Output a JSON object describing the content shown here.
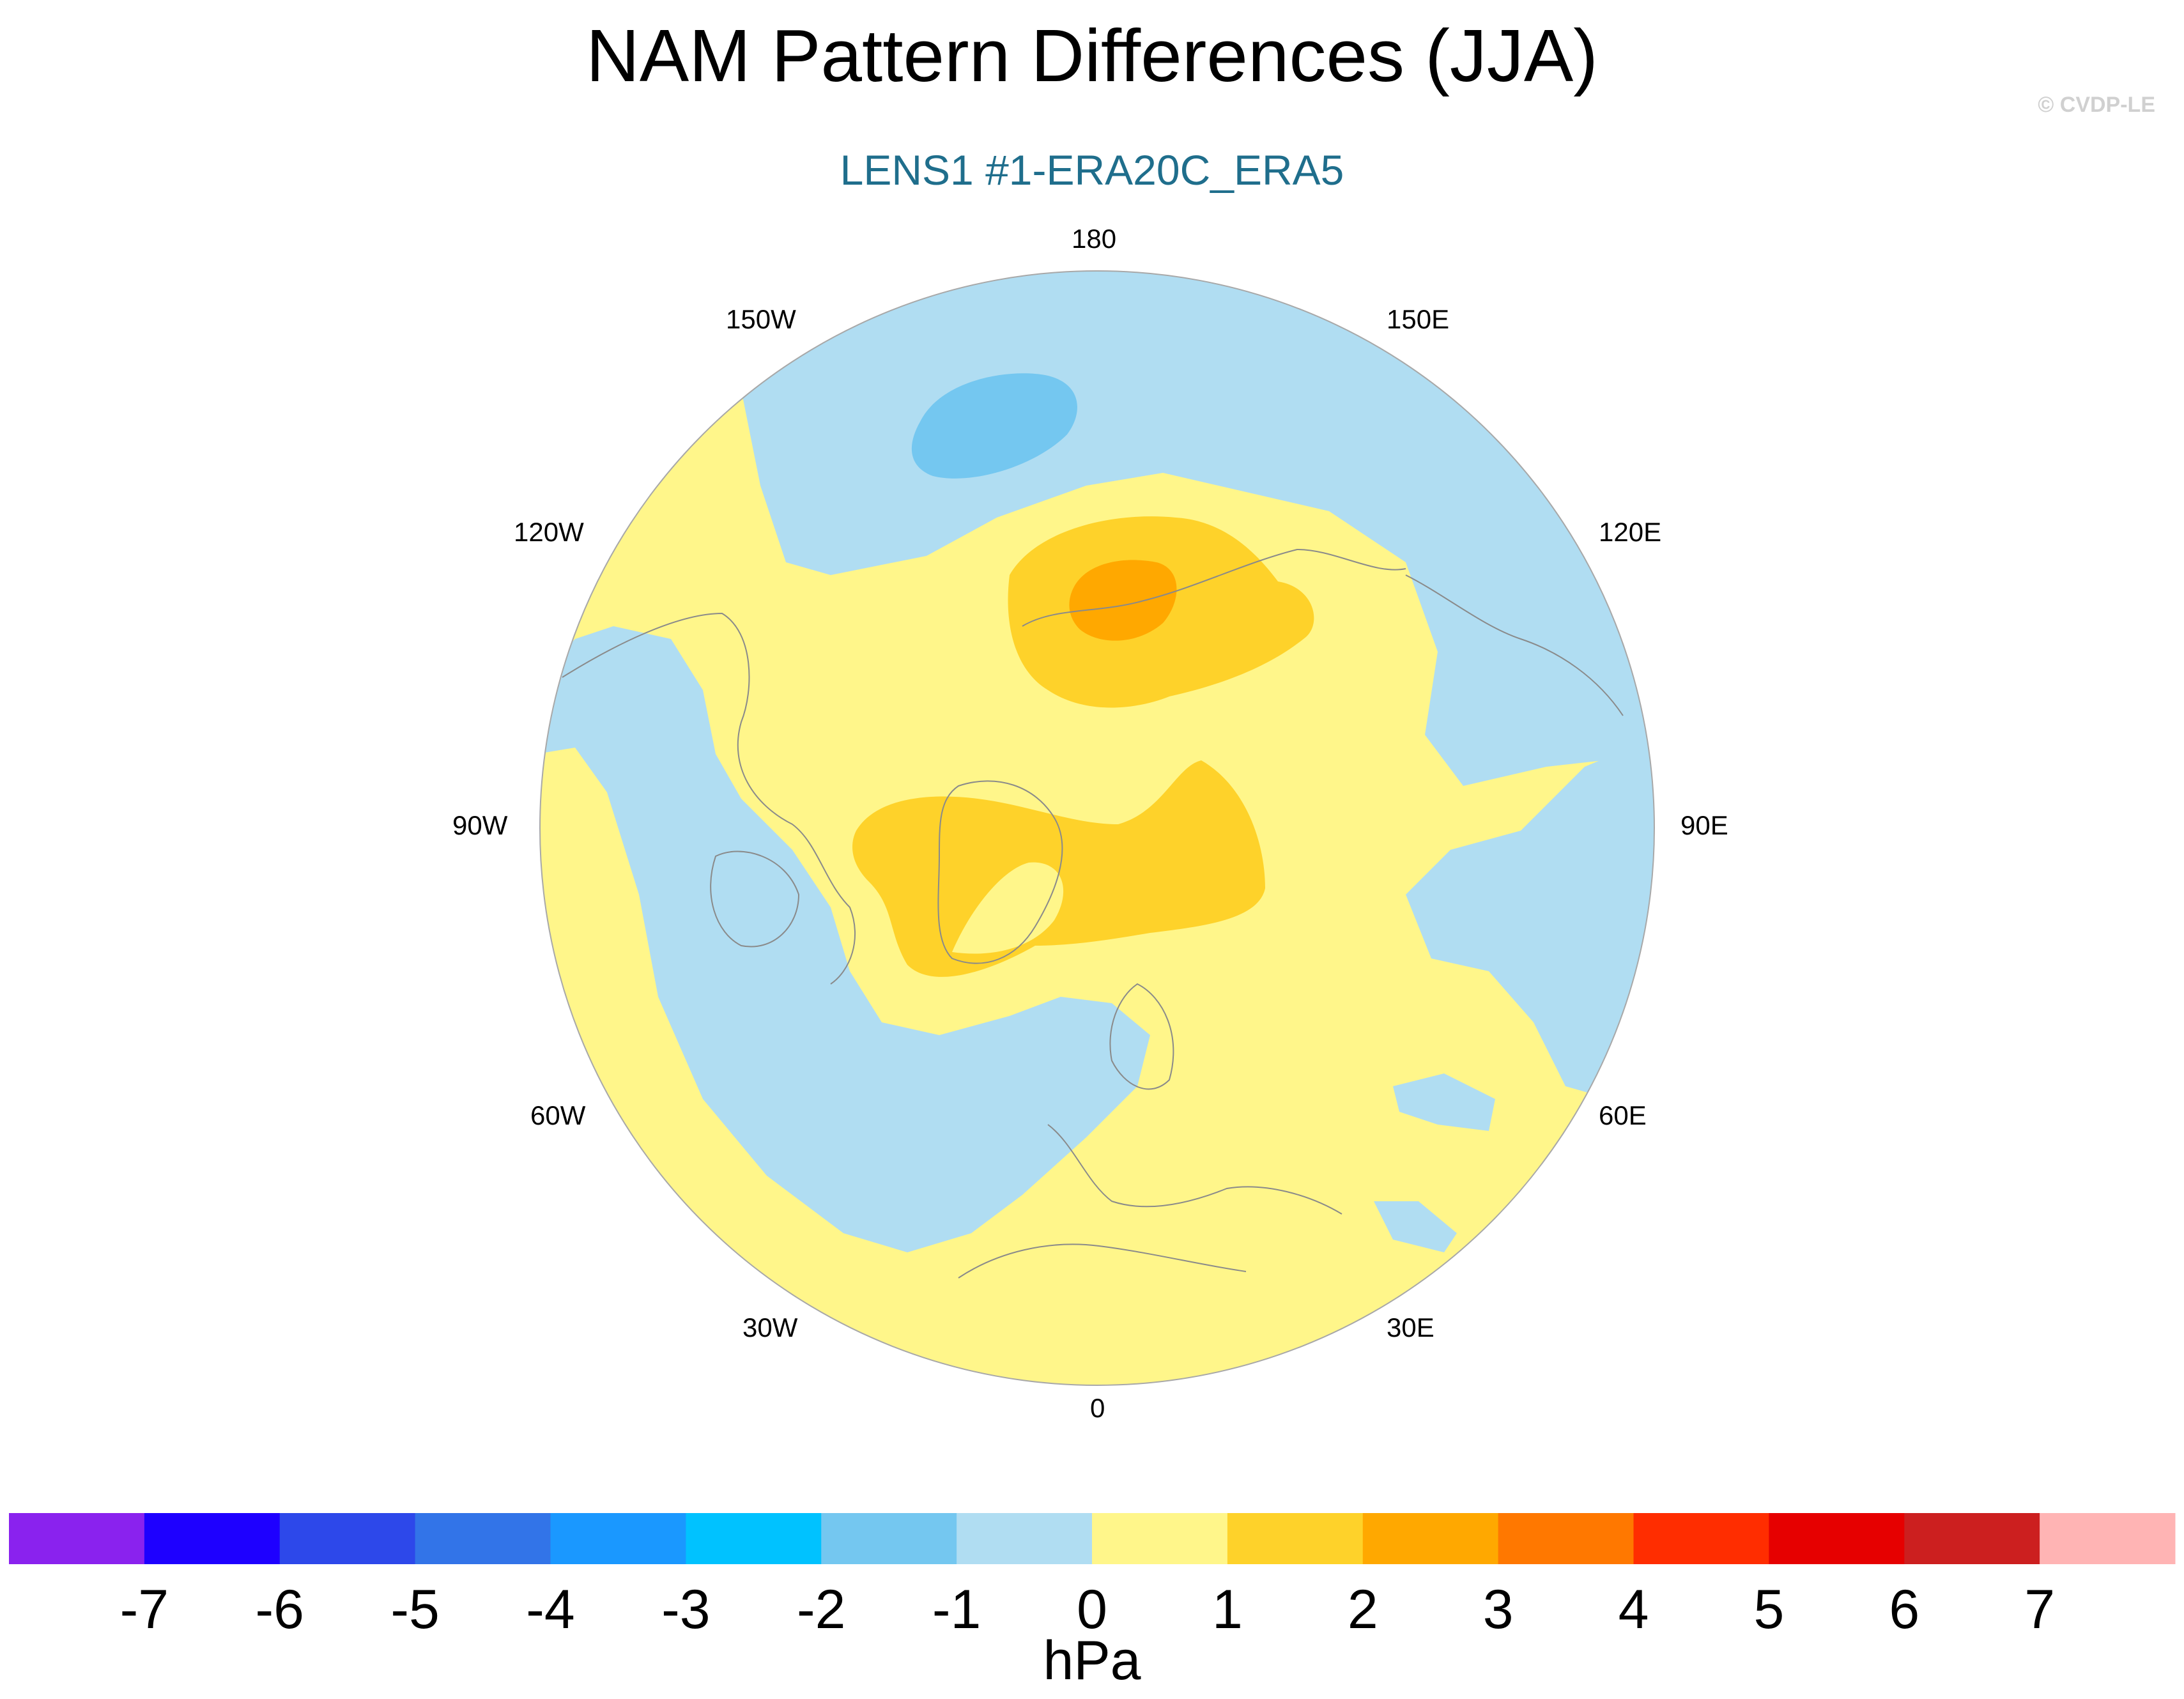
{
  "title": "NAM Pattern Differences (JJA)",
  "subtitle": "LENS1 #1-ERA20C_ERA5",
  "credit": "© CVDP-LE",
  "colors": {
    "subtitle": "#1f6e8c",
    "credit": "#d0d0d0",
    "field_neg1": "#b0ddf2",
    "field_neg2": "#74c7f0",
    "field_pos1": "#fff68a",
    "field_pos2": "#fed22a",
    "field_pos3": "#ffa800",
    "coast": "#8a8a8a"
  },
  "map": {
    "projection": "north-polar-stereographic",
    "longitude_labels": {
      "lon_180": "180",
      "lon_150E": "150E",
      "lon_120E": "120E",
      "lon_90E": "90E",
      "lon_60E": "60E",
      "lon_30E": "30E",
      "lon_0": "0",
      "lon_30W": "30W",
      "lon_60W": "60W",
      "lon_90W": "90W",
      "lon_120W": "120W",
      "lon_150W": "150W"
    }
  },
  "colorbar": {
    "units": "hPa",
    "tick_labels": [
      "-7",
      "-6",
      "-5",
      "-4",
      "-3",
      "-2",
      "-1",
      "0",
      "1",
      "2",
      "3",
      "4",
      "5",
      "6",
      "7"
    ],
    "colors": [
      "#8a22ee",
      "#1e00ff",
      "#2d48ea",
      "#3274e8",
      "#1a98ff",
      "#00c2ff",
      "#74c7f0",
      "#b0ddf2",
      "#fff68a",
      "#fed22a",
      "#ffa800",
      "#ff7800",
      "#ff2d00",
      "#e60000",
      "#cc1f1f",
      "#ffb4b4"
    ]
  }
}
